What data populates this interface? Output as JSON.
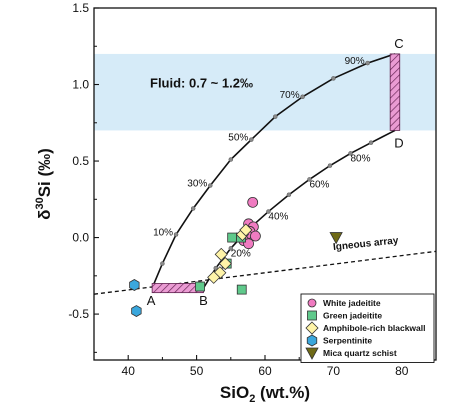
{
  "chart_data": {
    "type": "scatter",
    "title": "",
    "xlabel_main": "SiO",
    "xlabel_sub": "2",
    "xlabel_rest": " (wt.%)",
    "ylabel_delta": "δ",
    "ylabel_sup": "30",
    "ylabel_rest": "Si (‰)",
    "xlim": [
      35,
      85
    ],
    "ylim": [
      -0.8,
      1.5
    ],
    "xticks": [
      40,
      50,
      60,
      70,
      80
    ],
    "yticks": [
      -0.5,
      0.0,
      0.5,
      1.0,
      1.5
    ],
    "ytick_labels": [
      "-0.5",
      "0.0",
      "0.5",
      "1.0",
      "1.5"
    ],
    "grid": false,
    "fluid_band": {
      "label": "Fluid: 0.7 ~ 1.2‰",
      "y_min": 0.7,
      "y_max": 1.2,
      "color": "#d6ebf8"
    },
    "points": [
      {
        "name": "A",
        "x": 43.5,
        "y": -0.33
      },
      {
        "name": "B",
        "x": 51.0,
        "y": -0.33
      },
      {
        "name": "C",
        "x": 79.0,
        "y": 1.2
      },
      {
        "name": "D",
        "x": 79.0,
        "y": 0.7
      }
    ],
    "hatched_boxes": [
      {
        "x": [
          43.5,
          51.0
        ],
        "y": [
          -0.36,
          -0.3
        ]
      },
      {
        "x": [
          78.3,
          79.7
        ],
        "y": [
          0.7,
          1.2
        ]
      }
    ],
    "mixing_curves": [
      {
        "from": "A",
        "to": "C",
        "x": [
          43.5,
          45.0,
          47.0,
          49.5,
          52.0,
          55.0,
          58.0,
          61.5,
          65.5,
          70.0,
          75.0,
          79.0
        ],
        "y": [
          -0.33,
          -0.17,
          0.02,
          0.19,
          0.34,
          0.51,
          0.64,
          0.79,
          0.92,
          1.04,
          1.14,
          1.2
        ],
        "percent_labels": [
          {
            "text": "10%",
            "x": 47.0,
            "y": 0.02
          },
          {
            "text": "30%",
            "x": 52.0,
            "y": 0.34
          },
          {
            "text": "50%",
            "x": 58.0,
            "y": 0.64
          },
          {
            "text": "70%",
            "x": 65.5,
            "y": 0.92
          },
          {
            "text": "90%",
            "x": 75.0,
            "y": 1.14
          }
        ]
      },
      {
        "from": "B",
        "to": "D",
        "x": [
          51.0,
          52.8,
          55.0,
          57.5,
          60.5,
          63.5,
          66.5,
          69.5,
          72.5,
          75.5,
          79.0
        ],
        "y": [
          -0.33,
          -0.2,
          -0.07,
          0.05,
          0.17,
          0.28,
          0.38,
          0.47,
          0.55,
          0.62,
          0.7
        ],
        "percent_labels": [
          {
            "text": "20%",
            "x": 55.0,
            "y": -0.07
          },
          {
            "text": "40%",
            "x": 60.5,
            "y": 0.17
          },
          {
            "text": "60%",
            "x": 66.5,
            "y": 0.38
          },
          {
            "text": "80%",
            "x": 72.5,
            "y": 0.55
          }
        ]
      }
    ],
    "igneous_array": {
      "label": "Igneous array",
      "x": [
        35,
        85
      ],
      "y": [
        -0.37,
        -0.09
      ]
    },
    "series": [
      {
        "name": "White jadeitite",
        "marker": "circle",
        "color": "#f07bc1",
        "x": [
          58.2,
          57.6,
          58.3,
          57.8,
          57.3,
          58.6,
          56.9,
          57.6
        ],
        "y": [
          0.23,
          0.09,
          0.07,
          0.04,
          0.02,
          0.01,
          -0.02,
          -0.04
        ]
      },
      {
        "name": "Green jadeitite",
        "marker": "square",
        "color": "#5fc98b",
        "x": [
          55.2,
          56.5,
          54.4,
          50.5,
          56.6
        ],
        "y": [
          0.0,
          0.0,
          -0.17,
          -0.32,
          -0.34
        ]
      },
      {
        "name": "Amphibole-rich blackwall",
        "marker": "diamond",
        "color": "#fff4a8",
        "x": [
          56.7,
          57.2,
          53.6,
          54.2,
          53.4,
          52.5
        ],
        "y": [
          0.02,
          0.05,
          -0.11,
          -0.17,
          -0.23,
          -0.26
        ]
      },
      {
        "name": "Serpentinite",
        "marker": "hexagon",
        "color": "#3aa7dd",
        "x": [
          40.9,
          41.2
        ],
        "y": [
          -0.31,
          -0.48
        ]
      },
      {
        "name": "Mica quartz schist",
        "marker": "triangle-down",
        "color": "#6f6a16",
        "x": [
          70.4
        ],
        "y": [
          0.0
        ]
      }
    ],
    "legend": {
      "placement": "bottom-right"
    }
  }
}
